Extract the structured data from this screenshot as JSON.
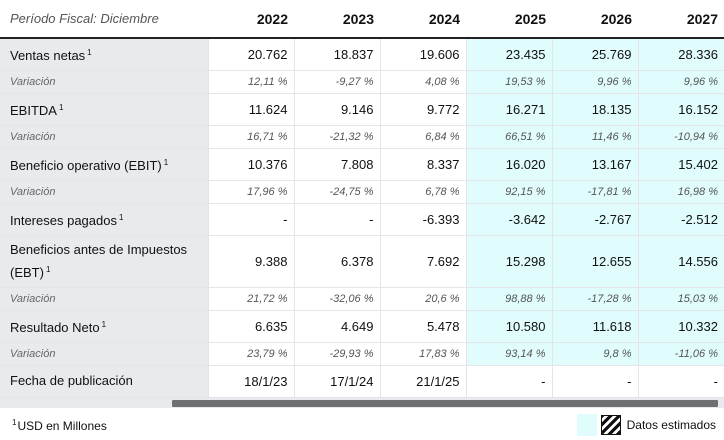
{
  "header": {
    "period_label": "Período Fiscal: Diciembre",
    "years": [
      "2022",
      "2023",
      "2024",
      "2025",
      "2026",
      "2027"
    ]
  },
  "rows": [
    {
      "label": "Ventas netas",
      "note": "1",
      "values": [
        "20.762",
        "18.837",
        "19.606",
        "23.435",
        "25.769",
        "28.336"
      ]
    },
    {
      "label": "Variación",
      "values": [
        "12,11 %",
        "-9,27 %",
        "4,08 %",
        "19,53 %",
        "9,96 %",
        "9,96 %"
      ]
    },
    {
      "label": "EBITDA",
      "note": "1",
      "values": [
        "11.624",
        "9.146",
        "9.772",
        "16.271",
        "18.135",
        "16.152"
      ]
    },
    {
      "label": "Variación",
      "values": [
        "16,71 %",
        "-21,32 %",
        "6,84 %",
        "66,51 %",
        "11,46 %",
        "-10,94 %"
      ]
    },
    {
      "label": "Beneficio operativo (EBIT)",
      "note": "1",
      "values": [
        "10.376",
        "7.808",
        "8.337",
        "16.020",
        "13.167",
        "15.402"
      ]
    },
    {
      "label": "Variación",
      "values": [
        "17,96 %",
        "-24,75 %",
        "6,78 %",
        "92,15 %",
        "-17,81 %",
        "16,98 %"
      ]
    },
    {
      "label": "Intereses pagados",
      "note": "1",
      "values": [
        "-",
        "-",
        "-6.393",
        "-3.642",
        "-2.767",
        "-2.512"
      ]
    },
    {
      "label": "Beneficios antes de Impuestos (EBT)",
      "note": "1",
      "values": [
        "9.388",
        "6.378",
        "7.692",
        "15.298",
        "12.655",
        "14.556"
      ]
    },
    {
      "label": "Variación",
      "values": [
        "21,72 %",
        "-32,06 %",
        "20,6 %",
        "98,88 %",
        "-17,28 %",
        "15,03 %"
      ]
    },
    {
      "label": "Resultado Neto",
      "note": "1",
      "values": [
        "6.635",
        "4.649",
        "5.478",
        "10.580",
        "11.618",
        "10.332"
      ]
    },
    {
      "label": "Variación",
      "values": [
        "23,79 %",
        "-29,93 %",
        "17,83 %",
        "93,14 %",
        "9,8 %",
        "-11,06 %"
      ]
    },
    {
      "label": "Fecha de publicación",
      "values": [
        "18/1/23",
        "17/1/24",
        "21/1/25",
        "-",
        "-",
        "-"
      ]
    }
  ],
  "footer": {
    "note_mark": "1",
    "note_text": "USD en Millones",
    "legend_label": "Datos estimados"
  },
  "colors": {
    "estimated_bg": "#e0fcfc",
    "label_bg": "#e8eaed",
    "scrollbar_thumb": "#6d6f72"
  }
}
